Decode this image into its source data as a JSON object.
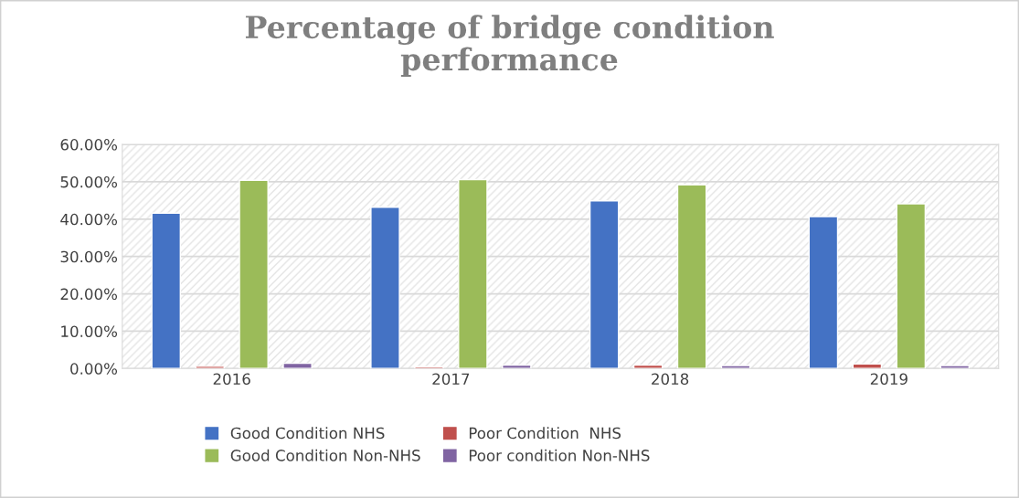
{
  "chart_data": {
    "type": "bar",
    "title": "Percentage of bridge condition\nperformance",
    "categories": [
      "2016",
      "2017",
      "2018",
      "2019"
    ],
    "series": [
      {
        "name": "Good Condition NHS",
        "color": "#4472c4",
        "values": [
          41.6,
          43.2,
          44.9,
          40.7
        ]
      },
      {
        "name": "Poor Condition  NHS",
        "color": "#c0504d",
        "values": [
          0.6,
          0.5,
          0.9,
          1.2
        ]
      },
      {
        "name": "Good Condition Non-NHS",
        "color": "#9bbb59",
        "values": [
          50.4,
          50.6,
          49.2,
          44.1
        ]
      },
      {
        "name": "Poor condition Non-NHS",
        "color": "#8064a2",
        "values": [
          1.4,
          0.9,
          0.8,
          0.8
        ]
      }
    ],
    "ylim": [
      0,
      60
    ],
    "yticks": [
      {
        "value": 0,
        "label": "0.00%"
      },
      {
        "value": 10,
        "label": "10.00%"
      },
      {
        "value": 20,
        "label": "20.00%"
      },
      {
        "value": 30,
        "label": "30.00%"
      },
      {
        "value": 40,
        "label": "40.00%"
      },
      {
        "value": 50,
        "label": "50.00%"
      },
      {
        "value": 60,
        "label": "60.00%"
      }
    ],
    "grid": "y",
    "legend": "bottom"
  }
}
